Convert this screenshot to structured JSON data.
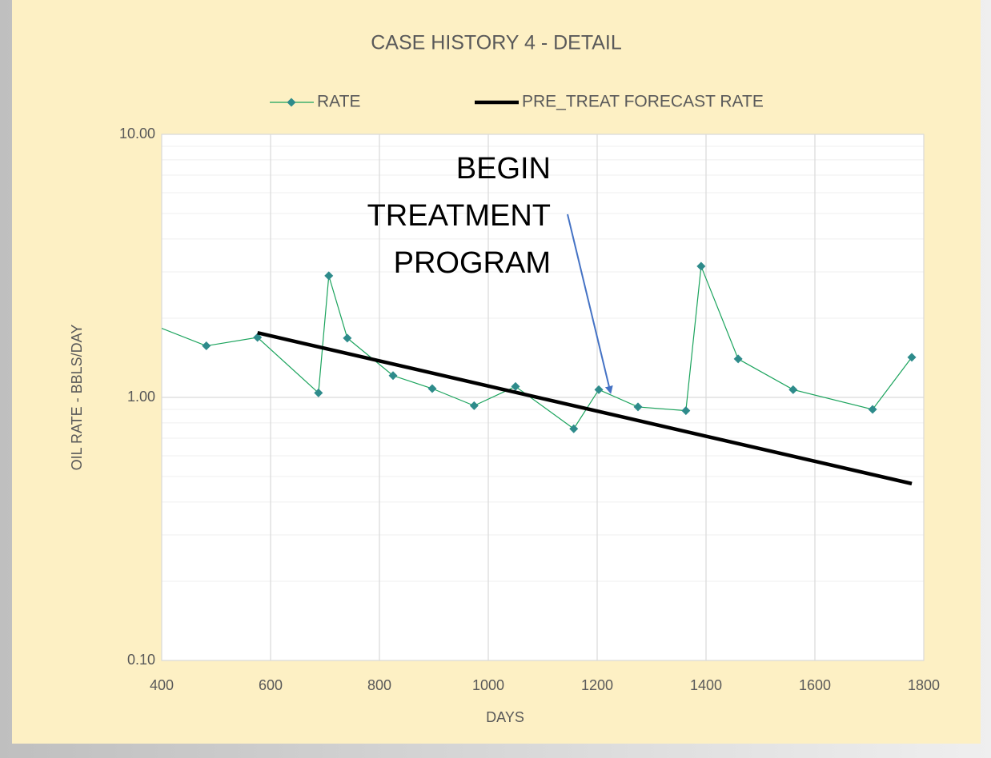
{
  "chart_data": {
    "type": "line",
    "title": "CASE HISTORY 4 - DETAIL",
    "x_label": "DAYS",
    "y_label": "OIL RATE - BBLS/DAY",
    "annotation": "BEGIN TREATMENT PROGRAM",
    "xlim": [
      400,
      1800
    ],
    "xticks": [
      400,
      600,
      800,
      1000,
      1200,
      1400,
      1600,
      1800
    ],
    "ylim": [
      0.1,
      10
    ],
    "yticks": [
      {
        "value": 0.1,
        "label": "0.10"
      },
      {
        "value": 1,
        "label": "1.00"
      },
      {
        "value": 10,
        "label": "10.00"
      }
    ],
    "y_scale": "log",
    "grid": true,
    "minor_grid": true,
    "legend": "top",
    "series": [
      {
        "name": "RATE",
        "color": "#1aa35c",
        "marker_color": "#2e8b8b",
        "x": [
          380,
          482,
          576,
          688,
          707,
          741,
          825,
          897,
          974,
          1050,
          1157,
          1203,
          1275,
          1363,
          1391,
          1459,
          1560,
          1706,
          1778
        ],
        "values": [
          1.9,
          1.57,
          1.69,
          1.04,
          2.9,
          1.68,
          1.21,
          1.08,
          0.93,
          1.1,
          0.76,
          1.07,
          0.92,
          0.89,
          3.15,
          1.4,
          1.07,
          0.9,
          1.42
        ]
      },
      {
        "name": "PRE_TREAT FORECAST RATE",
        "color": "#000000",
        "x": [
          576,
          1778
        ],
        "values": [
          1.76,
          0.47
        ]
      }
    ]
  }
}
